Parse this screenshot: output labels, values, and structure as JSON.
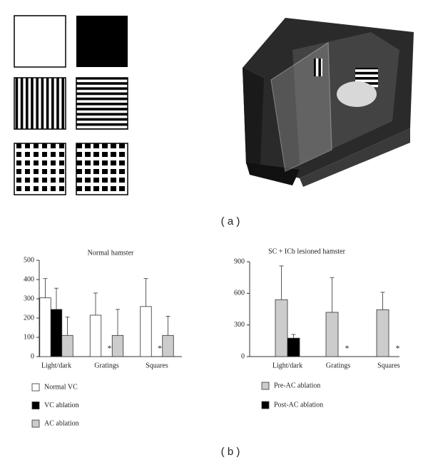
{
  "panel_labels": [
    "( a )",
    "( b )"
  ],
  "chart_data": [
    {
      "type": "bar",
      "title": "Normal hamster",
      "categories": [
        "Light/dark",
        "Gratings",
        "Squares"
      ],
      "ylim": [
        0,
        500
      ],
      "yticks": [
        0,
        100,
        200,
        300,
        400,
        500
      ],
      "series": [
        {
          "name": "Normal VC",
          "color": "#ffffff",
          "values": [
            305,
            215,
            260
          ],
          "errors": [
            100,
            115,
            145
          ]
        },
        {
          "name": "VC ablation",
          "color": "#000000",
          "values": [
            245,
            0,
            0
          ],
          "errors": [
            110,
            null,
            null
          ],
          "value_labels": [
            null,
            "*",
            "*"
          ]
        },
        {
          "name": "AC ablation",
          "color": "#cccccc",
          "values": [
            110,
            110,
            110
          ],
          "errors": [
            95,
            135,
            100
          ]
        }
      ]
    },
    {
      "type": "bar",
      "title": "SC + ICb lesioned hamster",
      "categories": [
        "Light/dark",
        "Gratings",
        "Squares"
      ],
      "ylim": [
        0,
        900
      ],
      "yticks": [
        0,
        300,
        600,
        900
      ],
      "series": [
        {
          "name": "Pre-AC ablation",
          "color": "#cccccc",
          "values": [
            540,
            420,
            445
          ],
          "errors": [
            320,
            330,
            165
          ]
        },
        {
          "name": "Post-AC ablation",
          "color": "#000000",
          "values": [
            175,
            0,
            0
          ],
          "errors": [
            35,
            null,
            null
          ],
          "value_labels": [
            null,
            "*",
            "*"
          ]
        }
      ]
    }
  ]
}
